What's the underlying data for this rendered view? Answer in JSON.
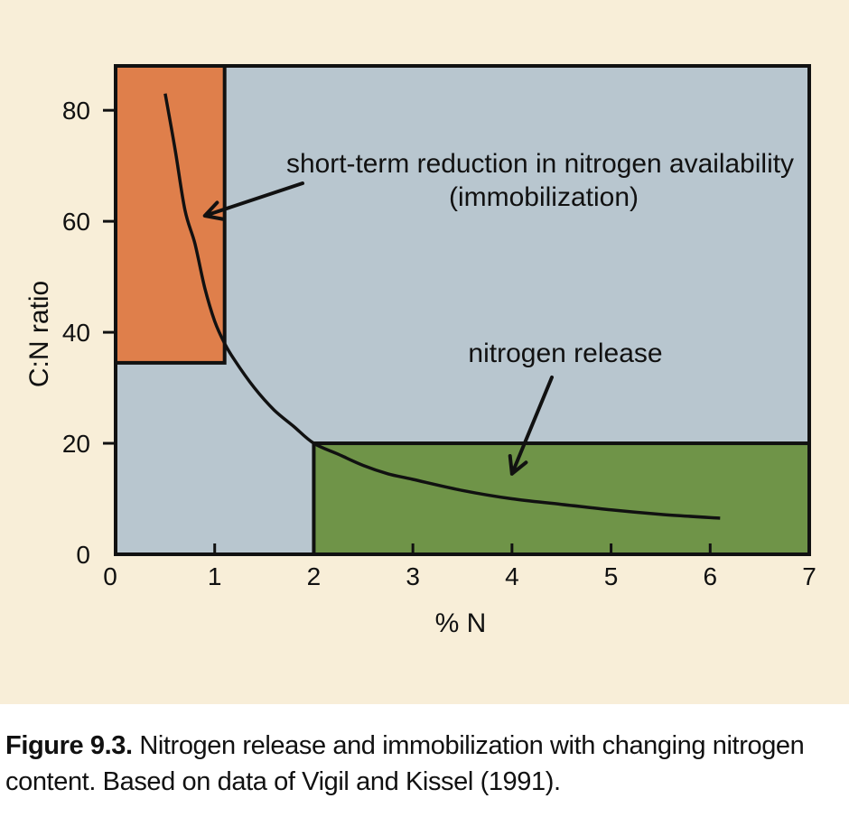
{
  "colors": {
    "background": "#f8eed8",
    "plot_area": "#b8c6cf",
    "immobilization_zone": "#df7f4b",
    "release_zone": "#6f9448",
    "line": "#111111"
  },
  "chart_data": {
    "type": "line",
    "xlabel": "% N",
    "ylabel": "C:N ratio",
    "xlim": [
      0,
      7
    ],
    "ylim": [
      0,
      88
    ],
    "x_ticks": [
      0,
      1,
      2,
      3,
      4,
      5,
      6,
      7
    ],
    "y_ticks": [
      0,
      20,
      40,
      60,
      80
    ],
    "grid": false,
    "series": [
      {
        "x": [
          0.5,
          0.6,
          0.7,
          0.8,
          0.9,
          1.0,
          1.1,
          1.2,
          1.4,
          1.6,
          1.8,
          2.0,
          2.25,
          2.5,
          2.75,
          3.0,
          3.5,
          4.0,
          4.5,
          5.0,
          5.5,
          6.1
        ],
        "y": [
          83,
          73,
          62,
          56,
          48,
          42,
          38,
          35,
          30,
          26,
          23,
          20,
          18,
          16,
          14.5,
          13.5,
          11.5,
          10,
          9,
          8,
          7.2,
          6.5
        ]
      }
    ],
    "regions": [
      {
        "name": "immobilization",
        "x": [
          0,
          1.1
        ],
        "y": [
          34.5,
          88
        ]
      },
      {
        "name": "release",
        "x": [
          2.0,
          7
        ],
        "y": [
          0,
          20
        ]
      }
    ],
    "annotations": [
      {
        "text": "short-term reduction in nitrogen availability",
        "arrow_to": {
          "x": 0.9,
          "y": 61
        }
      },
      {
        "text": "(immobilization)"
      },
      {
        "text": "nitrogen release",
        "arrow_to": {
          "x": 4.0,
          "y": 14.5
        }
      }
    ]
  },
  "caption": {
    "label": "Figure 9.3.",
    "line1": " Nitrogen release and immobilization with changing nitrogen",
    "line2": "content. Based on data of Vigil and Kissel (1991)."
  }
}
